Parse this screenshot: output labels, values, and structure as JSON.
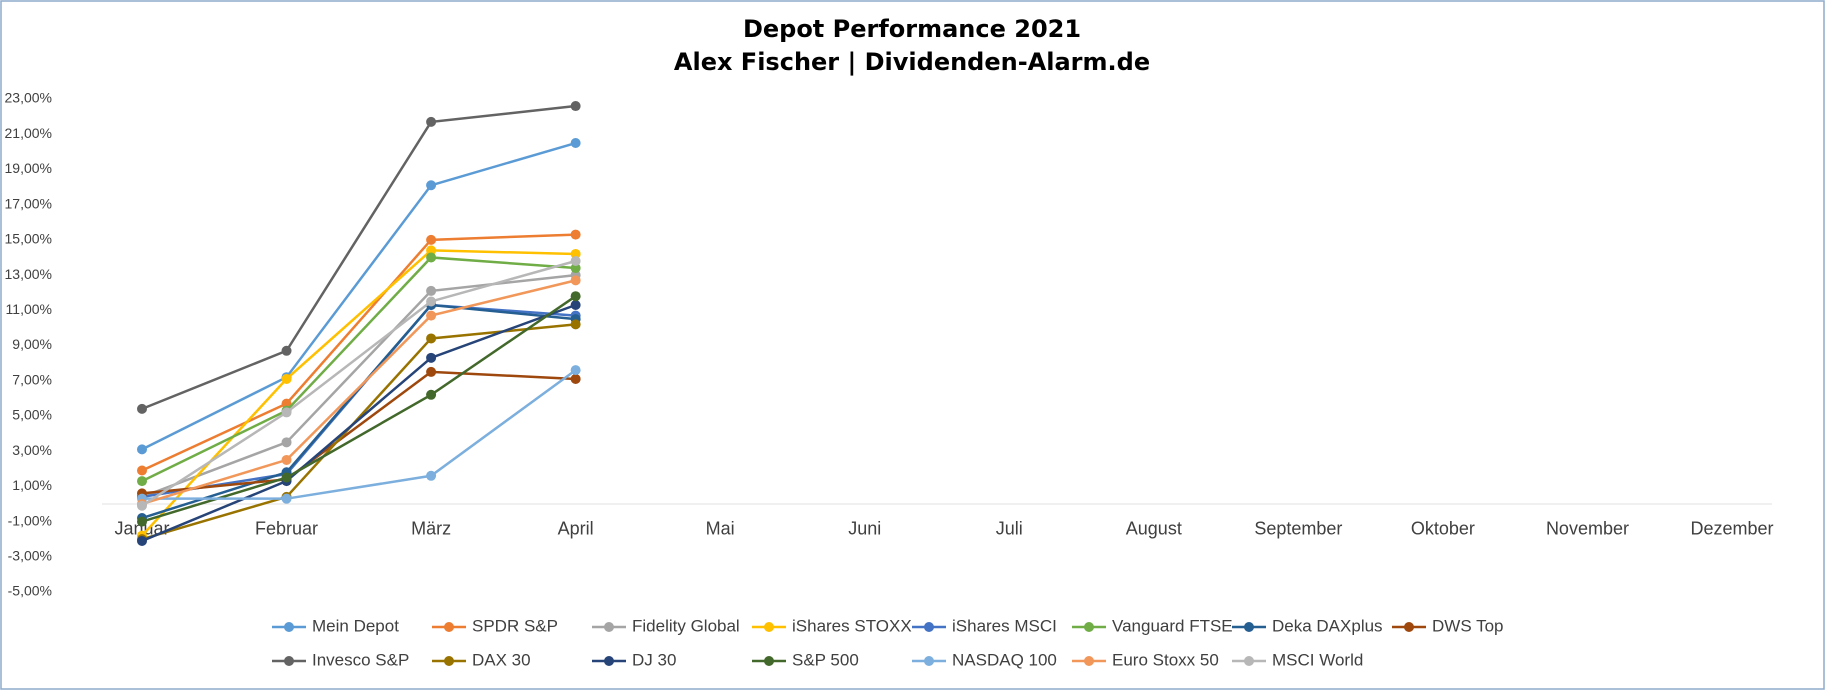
{
  "chart_data": {
    "type": "line",
    "title": "Depot Performance 2021",
    "subtitle": "Alex Fischer | Dividenden-Alarm.de",
    "categories": [
      "Januar",
      "Februar",
      "März",
      "April",
      "Mai",
      "Juni",
      "Juli",
      "August",
      "September",
      "Oktober",
      "November",
      "Dezember"
    ],
    "ylim": [
      -5,
      23
    ],
    "yticks": [
      {
        "value": -5,
        "label": "-5,00%"
      },
      {
        "value": -3,
        "label": "-3,00%"
      },
      {
        "value": -1,
        "label": "-1,00%"
      },
      {
        "value": 1,
        "label": "1,00%"
      },
      {
        "value": 3,
        "label": "3,00%"
      },
      {
        "value": 5,
        "label": "5,00%"
      },
      {
        "value": 7,
        "label": "7,00%"
      },
      {
        "value": 9,
        "label": "9,00%"
      },
      {
        "value": 11,
        "label": "11,00%"
      },
      {
        "value": 13,
        "label": "13,00%"
      },
      {
        "value": 15,
        "label": "15,00%"
      },
      {
        "value": 17,
        "label": "17,00%"
      },
      {
        "value": 19,
        "label": "19,00%"
      },
      {
        "value": 21,
        "label": "21,00%"
      },
      {
        "value": 23,
        "label": "23,00%"
      }
    ],
    "grid": false,
    "legend": "bottom",
    "series": [
      {
        "name": "Mein Depot",
        "color": "#5b9bd5",
        "values": [
          3.1,
          7.2,
          18.1,
          20.5,
          null,
          null,
          null,
          null,
          null,
          null,
          null,
          null
        ]
      },
      {
        "name": "SPDR S&P",
        "color": "#ed7d31",
        "values": [
          1.9,
          5.7,
          15.0,
          15.3,
          null,
          null,
          null,
          null,
          null,
          null,
          null,
          null
        ]
      },
      {
        "name": "Fidelity Global",
        "color": "#a5a5a5",
        "values": [
          0.4,
          3.5,
          12.1,
          13.0,
          null,
          null,
          null,
          null,
          null,
          null,
          null,
          null
        ]
      },
      {
        "name": "iShares STOXX",
        "color": "#ffc000",
        "values": [
          -1.8,
          7.1,
          14.4,
          14.2,
          null,
          null,
          null,
          null,
          null,
          null,
          null,
          null
        ]
      },
      {
        "name": "iShares MSCI",
        "color": "#4472c4",
        "values": [
          0.4,
          1.7,
          11.3,
          10.7,
          null,
          null,
          null,
          null,
          null,
          null,
          null,
          null
        ]
      },
      {
        "name": "Vanguard FTSE",
        "color": "#70ad47",
        "values": [
          1.3,
          5.3,
          14.0,
          13.4,
          null,
          null,
          null,
          null,
          null,
          null,
          null,
          null
        ]
      },
      {
        "name": "Deka DAXplus",
        "color": "#255e91",
        "values": [
          -0.8,
          1.8,
          11.3,
          10.5,
          null,
          null,
          null,
          null,
          null,
          null,
          null,
          null
        ]
      },
      {
        "name": "DWS Top",
        "color": "#9e480e",
        "values": [
          0.6,
          1.4,
          7.5,
          7.1,
          null,
          null,
          null,
          null,
          null,
          null,
          null,
          null
        ]
      },
      {
        "name": "Invesco S&P",
        "color": "#636363",
        "values": [
          5.4,
          8.7,
          21.7,
          22.6,
          null,
          null,
          null,
          null,
          null,
          null,
          null,
          null
        ]
      },
      {
        "name": "DAX 30",
        "color": "#997300",
        "values": [
          -2.0,
          0.4,
          9.4,
          10.2,
          null,
          null,
          null,
          null,
          null,
          null,
          null,
          null
        ]
      },
      {
        "name": "DJ 30",
        "color": "#264478",
        "values": [
          -2.1,
          1.3,
          8.3,
          11.3,
          null,
          null,
          null,
          null,
          null,
          null,
          null,
          null
        ]
      },
      {
        "name": "S&P 500",
        "color": "#43682b",
        "values": [
          -1.0,
          1.5,
          6.2,
          11.8,
          null,
          null,
          null,
          null,
          null,
          null,
          null,
          null
        ]
      },
      {
        "name": "NASDAQ 100",
        "color": "#7cafdd",
        "values": [
          0.3,
          0.3,
          1.6,
          7.6,
          null,
          null,
          null,
          null,
          null,
          null,
          null,
          null
        ]
      },
      {
        "name": "Euro Stoxx 50",
        "color": "#f1975a",
        "values": [
          0.0,
          2.5,
          10.7,
          12.7,
          null,
          null,
          null,
          null,
          null,
          null,
          null,
          null
        ]
      },
      {
        "name": "MSCI World",
        "color": "#b7b7b7",
        "values": [
          -0.1,
          5.2,
          11.5,
          13.8,
          null,
          null,
          null,
          null,
          null,
          null,
          null,
          null
        ]
      }
    ]
  }
}
